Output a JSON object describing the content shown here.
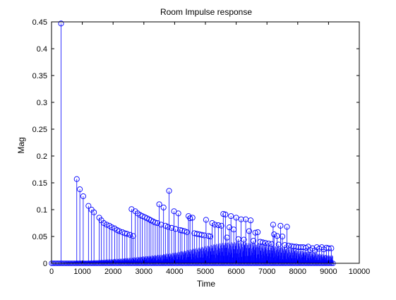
{
  "chart_data": {
    "type": "stem",
    "title": "Room Impulse response",
    "xlabel": "Time",
    "ylabel": "Mag",
    "xlim": [
      0,
      10000
    ],
    "ylim": [
      0,
      0.45
    ],
    "xticks": [
      0,
      1000,
      2000,
      3000,
      4000,
      5000,
      6000,
      7000,
      8000,
      9000,
      10000
    ],
    "yticks": [
      0,
      0.05,
      0.1,
      0.15,
      0.2,
      0.25,
      0.3,
      0.35,
      0.4,
      0.45
    ],
    "xtick_labels": [
      "0",
      "1000",
      "2000",
      "3000",
      "4000",
      "5000",
      "6000",
      "7000",
      "8000",
      "9000",
      "10000"
    ],
    "ytick_labels": [
      "0",
      "0.05",
      "0.1",
      "0.15",
      "0.2",
      "0.25",
      "0.3",
      "0.35",
      "0.4",
      "0.45"
    ],
    "grid": false,
    "stem_color": "#0000ff",
    "points": [
      [
        310,
        0.447
      ],
      [
        820,
        0.157
      ],
      [
        920,
        0.138
      ],
      [
        1030,
        0.125
      ],
      [
        1200,
        0.107
      ],
      [
        1300,
        0.1
      ],
      [
        1380,
        0.095
      ],
      [
        1550,
        0.085
      ],
      [
        1620,
        0.08
      ],
      [
        1700,
        0.075
      ],
      [
        1790,
        0.072
      ],
      [
        1880,
        0.07
      ],
      [
        1960,
        0.067
      ],
      [
        2050,
        0.065
      ],
      [
        2130,
        0.062
      ],
      [
        2200,
        0.06
      ],
      [
        2300,
        0.058
      ],
      [
        2380,
        0.056
      ],
      [
        2450,
        0.055
      ],
      [
        2550,
        0.053
      ],
      [
        2600,
        0.101
      ],
      [
        2650,
        0.051
      ],
      [
        2720,
        0.097
      ],
      [
        2800,
        0.093
      ],
      [
        2880,
        0.09
      ],
      [
        2950,
        0.088
      ],
      [
        3030,
        0.086
      ],
      [
        3100,
        0.084
      ],
      [
        3170,
        0.082
      ],
      [
        3230,
        0.08
      ],
      [
        3300,
        0.078
      ],
      [
        3370,
        0.076
      ],
      [
        3440,
        0.075
      ],
      [
        3500,
        0.11
      ],
      [
        3560,
        0.072
      ],
      [
        3640,
        0.104
      ],
      [
        3700,
        0.07
      ],
      [
        3780,
        0.068
      ],
      [
        3820,
        0.135
      ],
      [
        3900,
        0.066
      ],
      [
        3980,
        0.097
      ],
      [
        4030,
        0.064
      ],
      [
        4120,
        0.093
      ],
      [
        4180,
        0.062
      ],
      [
        4240,
        0.061
      ],
      [
        4320,
        0.06
      ],
      [
        4400,
        0.058
      ],
      [
        4450,
        0.088
      ],
      [
        4500,
        0.084
      ],
      [
        4580,
        0.085
      ],
      [
        4640,
        0.056
      ],
      [
        4720,
        0.055
      ],
      [
        4800,
        0.054
      ],
      [
        4880,
        0.053
      ],
      [
        4960,
        0.052
      ],
      [
        5020,
        0.081
      ],
      [
        5100,
        0.051
      ],
      [
        5160,
        0.05
      ],
      [
        5220,
        0.075
      ],
      [
        5310,
        0.072
      ],
      [
        5420,
        0.071
      ],
      [
        5520,
        0.07
      ],
      [
        5580,
        0.092
      ],
      [
        5650,
        0.091
      ],
      [
        5700,
        0.048
      ],
      [
        5780,
        0.067
      ],
      [
        5830,
        0.088
      ],
      [
        5920,
        0.063
      ],
      [
        6000,
        0.085
      ],
      [
        6070,
        0.045
      ],
      [
        6160,
        0.082
      ],
      [
        6250,
        0.044
      ],
      [
        6310,
        0.082
      ],
      [
        6420,
        0.06
      ],
      [
        6470,
        0.08
      ],
      [
        6560,
        0.042
      ],
      [
        6620,
        0.057
      ],
      [
        6700,
        0.058
      ],
      [
        6780,
        0.04
      ],
      [
        6860,
        0.039
      ],
      [
        6950,
        0.038
      ],
      [
        7050,
        0.037
      ],
      [
        7150,
        0.036
      ],
      [
        7200,
        0.072
      ],
      [
        7230,
        0.054
      ],
      [
        7330,
        0.051
      ],
      [
        7380,
        0.035
      ],
      [
        7440,
        0.07
      ],
      [
        7500,
        0.05
      ],
      [
        7580,
        0.034
      ],
      [
        7650,
        0.068
      ],
      [
        7700,
        0.033
      ],
      [
        7800,
        0.032
      ],
      [
        7870,
        0.031
      ],
      [
        7950,
        0.031
      ],
      [
        8020,
        0.03
      ],
      [
        8100,
        0.03
      ],
      [
        8180,
        0.03
      ],
      [
        8260,
        0.029
      ],
      [
        8340,
        0.031
      ],
      [
        8400,
        0.025
      ],
      [
        8480,
        0.028
      ],
      [
        8560,
        0.024
      ],
      [
        8620,
        0.03
      ],
      [
        8700,
        0.027
      ],
      [
        8780,
        0.03
      ],
      [
        8850,
        0.026
      ],
      [
        8930,
        0.029
      ],
      [
        9000,
        0.028
      ],
      [
        9090,
        0.028
      ]
    ],
    "dense_trace": [
      [
        1000,
        0.004
      ],
      [
        1500,
        0.006
      ],
      [
        2000,
        0.008
      ],
      [
        2500,
        0.01
      ],
      [
        3000,
        0.013
      ],
      [
        3500,
        0.016
      ],
      [
        4000,
        0.02
      ],
      [
        4500,
        0.026
      ],
      [
        5000,
        0.032
      ],
      [
        5500,
        0.038
      ],
      [
        6000,
        0.04
      ],
      [
        6500,
        0.038
      ],
      [
        7000,
        0.034
      ],
      [
        7500,
        0.03
      ],
      [
        8000,
        0.025
      ],
      [
        8500,
        0.02
      ],
      [
        9000,
        0.015
      ]
    ],
    "dense_until": 9150
  }
}
